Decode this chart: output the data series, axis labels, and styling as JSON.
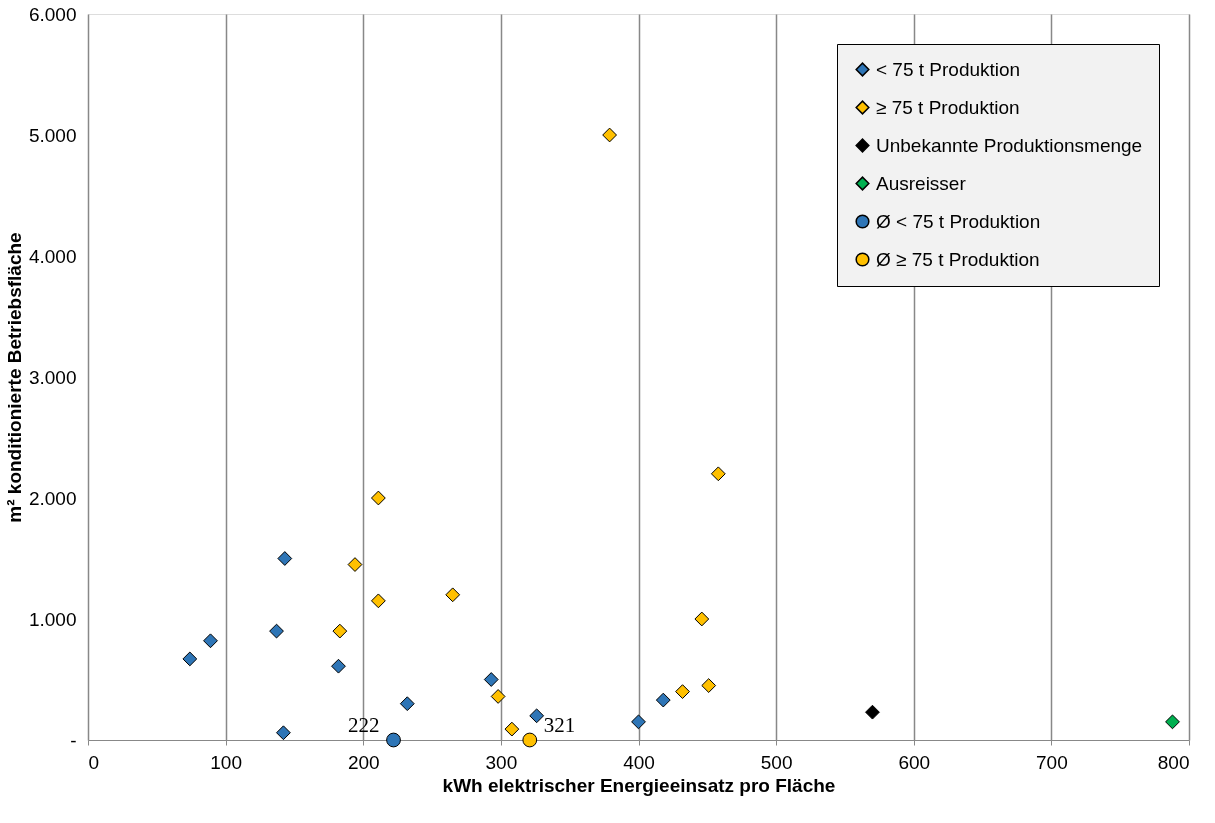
{
  "chart_data": {
    "type": "scatter",
    "xlabel": "kWh elektrischer Energieeinsatz pro Fläche",
    "ylabel": "m² konditionierte Betriebsfläche",
    "xlim": [
      0,
      800
    ],
    "xticks": [
      0,
      100,
      200,
      300,
      400,
      500,
      600,
      700,
      800
    ],
    "ylim": [
      0,
      6000
    ],
    "yticks": [
      {
        "value": 0,
        "label": "-"
      },
      {
        "value": 1000,
        "label": "1.000"
      },
      {
        "value": 2000,
        "label": "2.000"
      },
      {
        "value": 3000,
        "label": "3.000"
      },
      {
        "value": 4000,
        "label": "4.000"
      },
      {
        "value": 5000,
        "label": "5.000"
      },
      {
        "value": 6000,
        "label": "6.000"
      }
    ],
    "grid": "x",
    "legend": "top right",
    "marker": "diamond",
    "series": [
      {
        "name": "< 75 t Produktion",
        "color": "#2e75b6",
        "x": [
          74,
          89,
          143,
          137,
          182,
          142,
          232,
          293,
          326,
          400,
          418
        ],
        "values": [
          670,
          820,
          1500,
          900,
          610,
          60,
          300,
          500,
          200,
          150,
          330
        ]
      },
      {
        "name": "≥ 75 t Produktion",
        "color": "#ffc000",
        "x": [
          379,
          211,
          458,
          194,
          211,
          265,
          183,
          446,
          298,
          432,
          451,
          308
        ],
        "values": [
          5000,
          2000,
          2200,
          1450,
          1150,
          1200,
          900,
          1000,
          360,
          400,
          450,
          90
        ]
      },
      {
        "name": "Unbekannte Produktionsmenge",
        "color": "#000000",
        "x": [
          570
        ],
        "values": [
          230
        ]
      },
      {
        "name": "Ausreisser",
        "color": "#00b050",
        "x": [
          788
        ],
        "values": [
          150
        ]
      },
      {
        "name": "Ø < 75 t Produktion",
        "color": "#2e75b6",
        "marker": "circle",
        "x": [
          222
        ],
        "values": [
          0
        ]
      },
      {
        "name": "Ø ≥ 75 t Produktion",
        "color": "#ffc000",
        "marker": "circle",
        "x": [
          321
        ],
        "values": [
          0
        ]
      }
    ],
    "annotations": [
      {
        "text": "222",
        "x": 222,
        "y": 0
      },
      {
        "text": "321",
        "x": 321,
        "y": 0
      }
    ]
  }
}
